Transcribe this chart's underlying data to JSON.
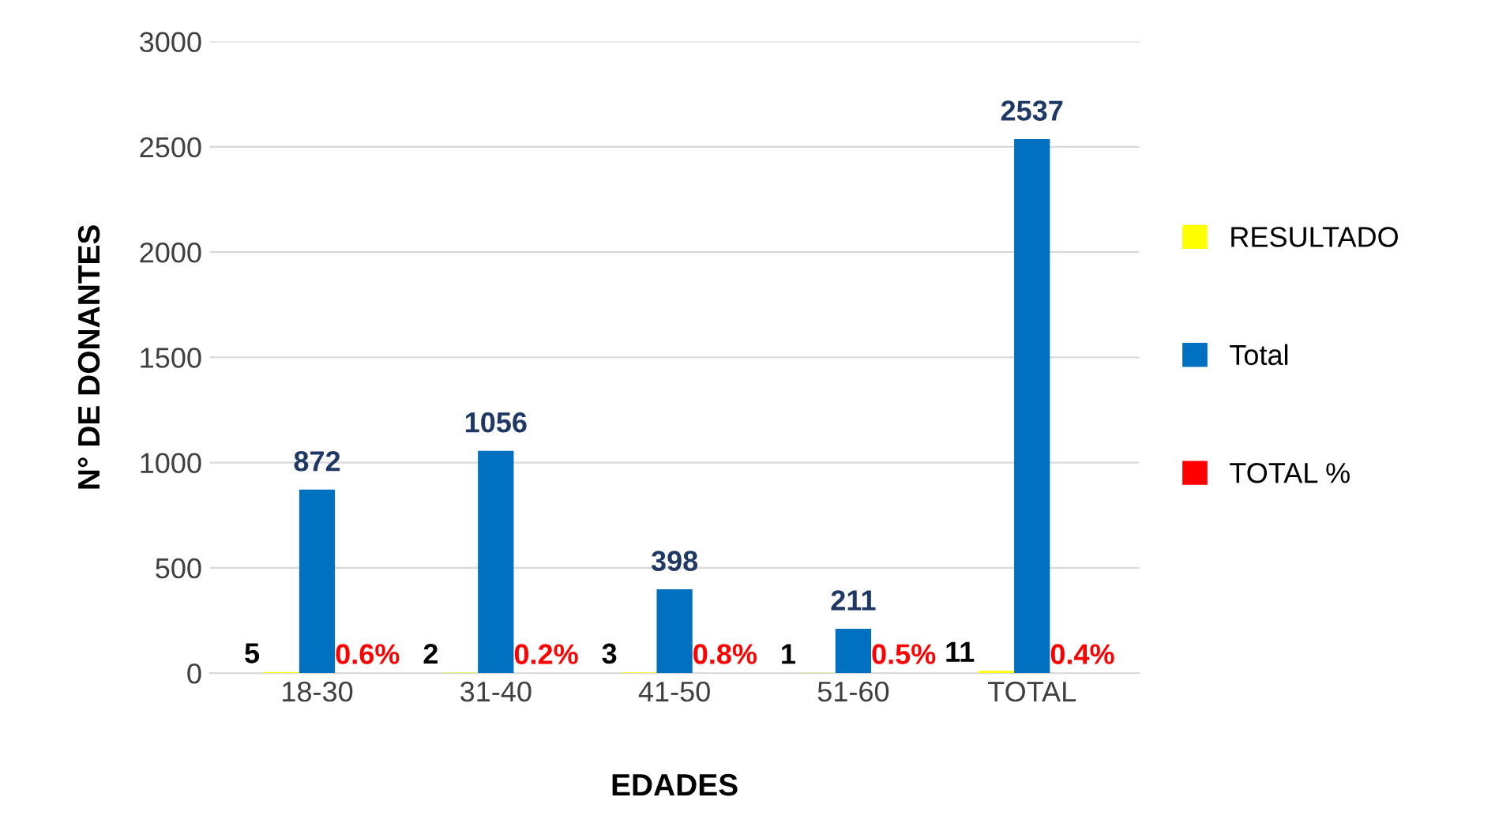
{
  "chart_data": {
    "type": "bar",
    "xlabel": "EDADES",
    "ylabel": "N° DE DONANTES",
    "categories": [
      "18-30",
      "31-40",
      "41-50",
      "51-60",
      "TOTAL"
    ],
    "series": [
      {
        "name": "RESULTADO",
        "color": "#ffff00",
        "values": [
          5,
          2,
          3,
          1,
          11
        ],
        "value_labels": [
          "5",
          "2",
          "3",
          "1",
          "11"
        ]
      },
      {
        "name": "Total",
        "color": "#0070c0",
        "values": [
          872,
          1056,
          398,
          211,
          2537
        ],
        "value_labels": [
          "872",
          "1056",
          "398",
          "211",
          "2537"
        ]
      },
      {
        "name": "TOTAL %",
        "color": "#ff0000",
        "values": [
          0.6,
          0.2,
          0.8,
          0.5,
          0.4
        ],
        "value_labels": [
          "0.6%",
          "0.2%",
          "0.8%",
          "0.5%",
          "0.4%"
        ]
      }
    ],
    "ylim": [
      0,
      3000
    ],
    "yticks": [
      0,
      500,
      1000,
      1500,
      2000,
      2500,
      3000
    ],
    "grid": "y",
    "legend": "right"
  }
}
